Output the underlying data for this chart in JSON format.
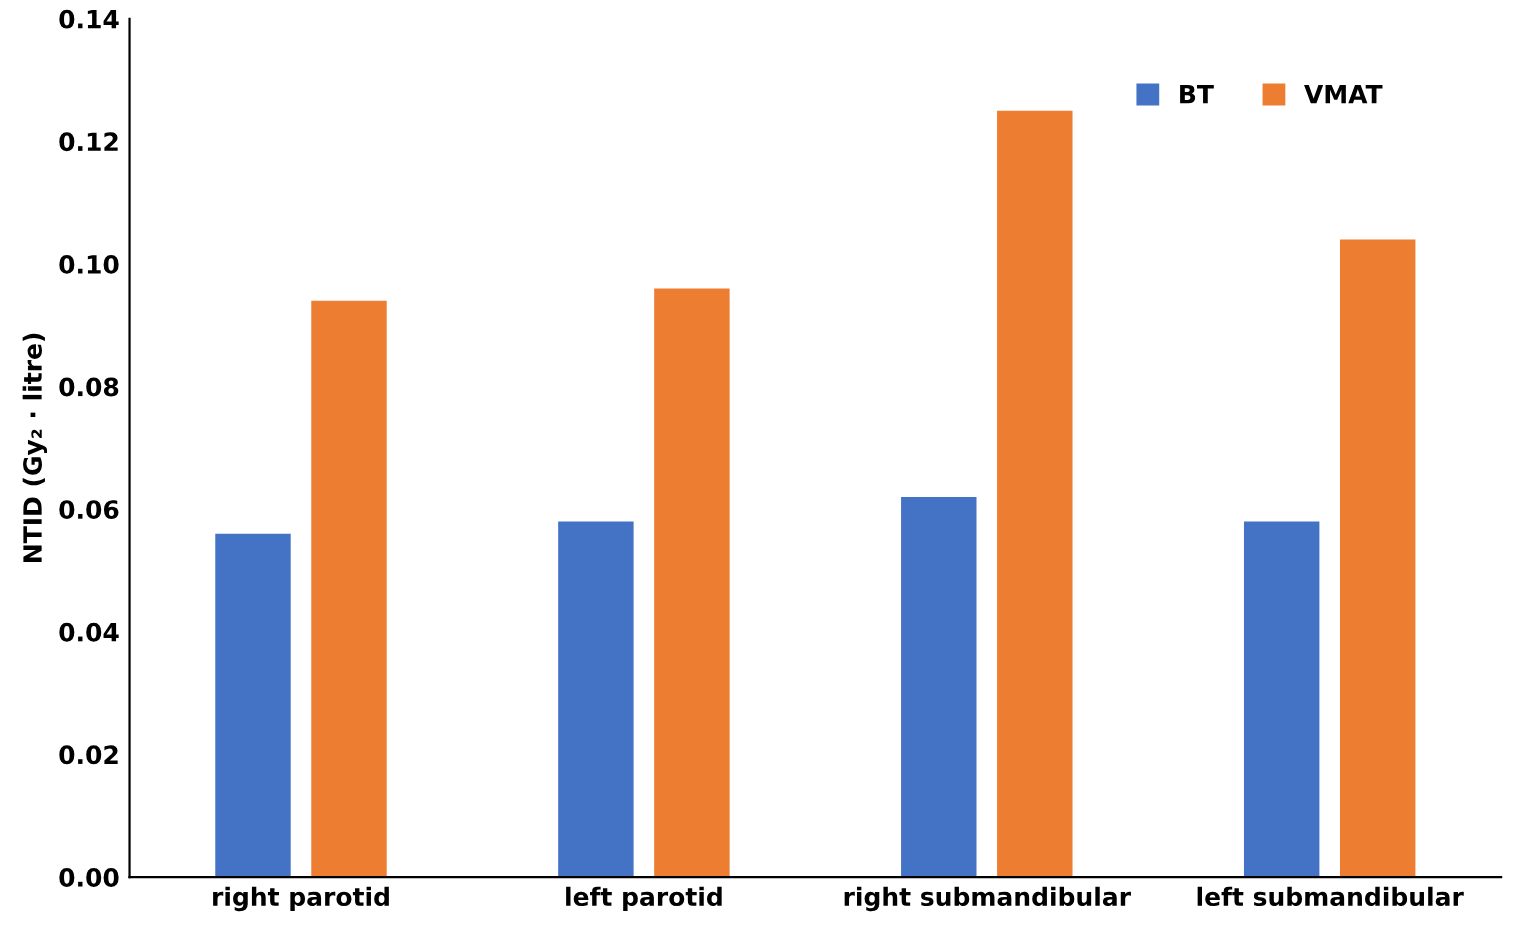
{
  "chart_data": {
    "type": "bar",
    "ylabel": "NTID (Gy₂ · litre)",
    "categories": [
      "right parotid",
      "left parotid",
      "right submandibular",
      "left submandibular"
    ],
    "series": [
      {
        "name": "BT",
        "color": "#4472c4",
        "values": [
          0.056,
          0.058,
          0.062,
          0.058
        ]
      },
      {
        "name": "VMAT",
        "color": "#ed7d31",
        "values": [
          0.094,
          0.096,
          0.125,
          0.104
        ]
      }
    ],
    "ylim": [
      0,
      0.14
    ],
    "yticks": [
      {
        "value": 0,
        "label": "0.00"
      },
      {
        "value": 0.02,
        "label": "0.02"
      },
      {
        "value": 0.04,
        "label": "0.04"
      },
      {
        "value": 0.06,
        "label": "0.06"
      },
      {
        "value": 0.08,
        "label": "0.08"
      },
      {
        "value": 0.1,
        "label": "0.10"
      },
      {
        "value": 0.12,
        "label": "0.12"
      },
      {
        "value": 0.14,
        "label": "0.14"
      }
    ],
    "grid": false,
    "legend": "top right"
  }
}
